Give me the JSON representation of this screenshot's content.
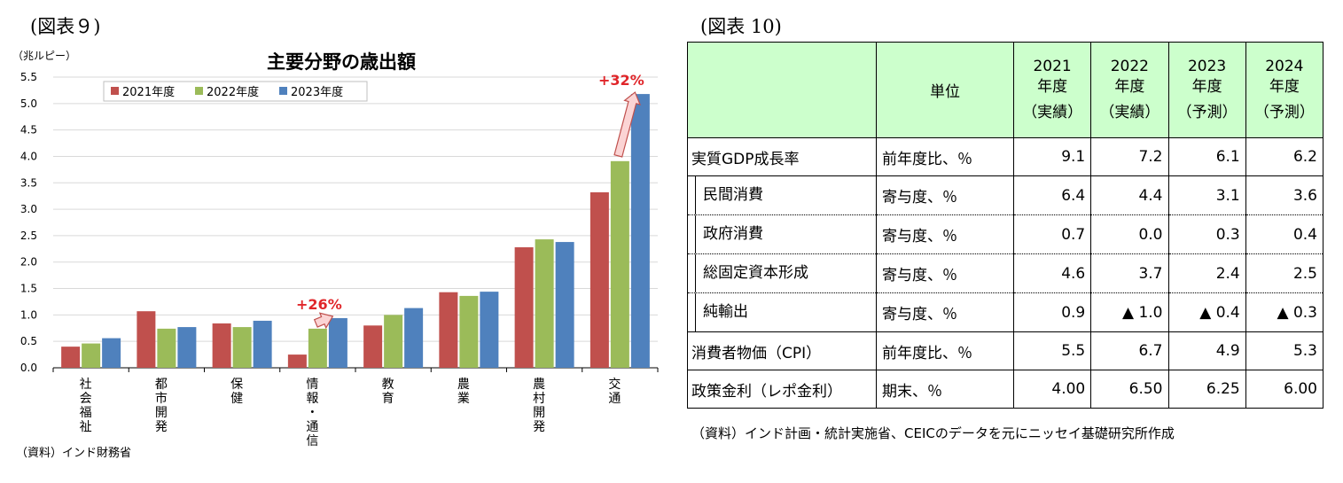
{
  "left_figure_label": "(図表９)",
  "right_figure_label": "(図表 10)",
  "chart_data": {
    "type": "bar",
    "title": "主要分野の歳出額",
    "ylabel": "（兆ルピー）",
    "ylim": [
      0,
      5.5
    ],
    "yticks": [
      "0.0",
      "0.5",
      "1.0",
      "1.5",
      "2.0",
      "2.5",
      "3.0",
      "3.5",
      "4.0",
      "4.5",
      "5.0",
      "5.5"
    ],
    "categories": [
      "社会福祉",
      "都市開発",
      "保健",
      "情報・通信",
      "教育",
      "農業",
      "農村開発",
      "交通"
    ],
    "category_glyphs": [
      [
        "社",
        "会",
        "福",
        "祉"
      ],
      [
        "都",
        "市",
        "開",
        "発"
      ],
      [
        "保",
        "健"
      ],
      [
        "情",
        "報",
        "・",
        "通",
        "信"
      ],
      [
        "教",
        "育"
      ],
      [
        "農",
        "業"
      ],
      [
        "農",
        "村",
        "開",
        "発"
      ],
      [
        "交",
        "通"
      ]
    ],
    "series": [
      {
        "name": "2021年度",
        "color": "#c0504d",
        "values": [
          0.4,
          1.07,
          0.84,
          0.25,
          0.8,
          1.43,
          2.28,
          3.32
        ]
      },
      {
        "name": "2022年度",
        "color": "#9bbb59",
        "values": [
          0.46,
          0.74,
          0.77,
          0.74,
          1.0,
          1.36,
          2.43,
          3.91
        ]
      },
      {
        "name": "2023年度",
        "color": "#4f81bd",
        "values": [
          0.56,
          0.77,
          0.89,
          0.94,
          1.13,
          1.44,
          2.38,
          5.18
        ]
      }
    ],
    "annotations": [
      {
        "text": "+26%",
        "category_index": 3,
        "from_value": 0.74,
        "to_value": 0.94
      },
      {
        "text": "+32%",
        "category_index": 7,
        "from_value": 3.91,
        "to_value": 5.18
      }
    ],
    "legend_position": "top-left"
  },
  "left_source": "（資料）インド財務省",
  "table": {
    "header": {
      "unit": "単位",
      "years": [
        [
          "2021",
          "年度",
          "（実績）"
        ],
        [
          "2022",
          "年度",
          "（実績）"
        ],
        [
          "2023",
          "年度",
          "（予測）"
        ],
        [
          "2024",
          "年度",
          "（予測）"
        ]
      ]
    },
    "rows": [
      {
        "label": "実質GDP成長率",
        "unit": "前年度比、％",
        "values": [
          "9.1",
          "7.2",
          "6.1",
          "6.2"
        ],
        "sub": false
      },
      {
        "label": "民間消費",
        "unit": "寄与度、％",
        "values": [
          "6.4",
          "4.4",
          "3.1",
          "3.6"
        ],
        "sub": true
      },
      {
        "label": "政府消費",
        "unit": "寄与度、％",
        "values": [
          "0.7",
          "0.0",
          "0.3",
          "0.4"
        ],
        "sub": true
      },
      {
        "label": "総固定資本形成",
        "unit": "寄与度、％",
        "values": [
          "4.6",
          "3.7",
          "2.4",
          "2.5"
        ],
        "sub": true
      },
      {
        "label": "純輸出",
        "unit": "寄与度、％",
        "values": [
          "0.9",
          "▲ 1.0",
          "▲ 0.4",
          "▲ 0.3"
        ],
        "sub": true
      },
      {
        "label": "消費者物価（CPI）",
        "unit": "前年度比、％",
        "values": [
          "5.5",
          "6.7",
          "4.9",
          "5.3"
        ],
        "sub": false
      },
      {
        "label": "政策金利（レポ金利）",
        "unit": "期末、％",
        "values": [
          "4.00",
          "6.50",
          "6.25",
          "6.00"
        ],
        "sub": false
      }
    ]
  },
  "right_source": "（資料）インド計画・統計実施省、CEICのデータを元にニッセイ基礎研究所作成"
}
